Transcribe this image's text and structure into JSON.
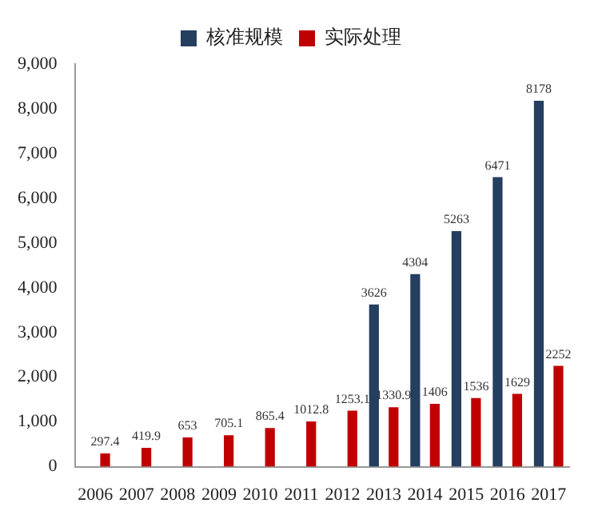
{
  "chart_data": {
    "type": "bar",
    "categories": [
      "2006",
      "2007",
      "2008",
      "2009",
      "2010",
      "2011",
      "2012",
      "2013",
      "2014",
      "2015",
      "2016",
      "2017"
    ],
    "series": [
      {
        "name": "核准规模",
        "color": "#243f60",
        "values": [
          null,
          null,
          null,
          null,
          null,
          null,
          null,
          3626,
          4304,
          5263,
          6471,
          8178
        ]
      },
      {
        "name": "实际处理",
        "color": "#c00000",
        "values": [
          297.4,
          419.9,
          653,
          705.1,
          865.4,
          1012.8,
          1253.1,
          1330.9,
          1406,
          1536,
          1629,
          2252
        ]
      }
    ],
    "ylim": [
      0,
      9000
    ],
    "yticks": [
      0,
      {
        "value": 1000,
        "label": "1,000"
      },
      {
        "value": 2000,
        "label": "2,000"
      },
      {
        "value": 3000,
        "label": "3,000"
      },
      {
        "value": 4000,
        "label": "4,000"
      },
      {
        "value": 5000,
        "label": "5,000"
      },
      {
        "value": 6000,
        "label": "6,000"
      },
      {
        "value": 7000,
        "label": "7,000"
      },
      {
        "value": 8000,
        "label": "8,000"
      },
      {
        "value": 9000,
        "label": "9,000"
      }
    ],
    "grid": false,
    "legend": "top",
    "data_labels": true
  }
}
